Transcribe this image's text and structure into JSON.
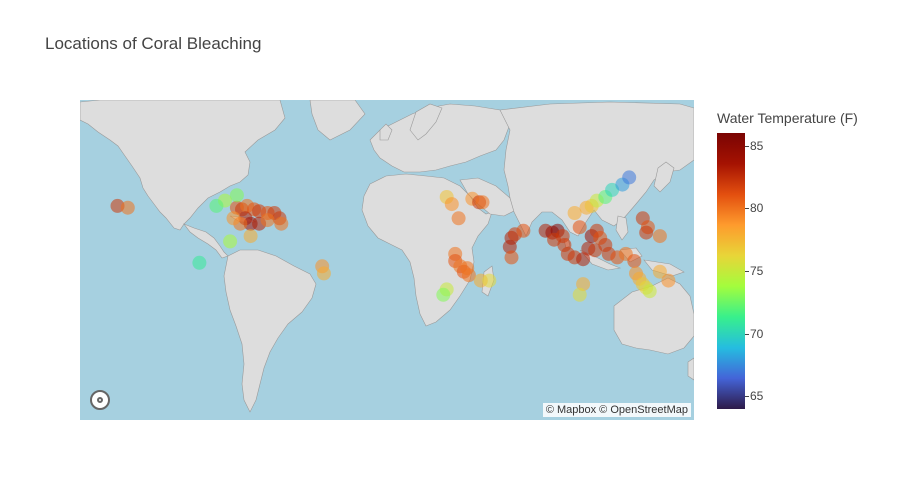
{
  "title": "Locations of Coral Bleaching",
  "attribution": "© Mapbox © OpenStreetMap",
  "colorbar": {
    "title": "Water Temperature (F)",
    "min": 64,
    "max": 86,
    "ticks": [
      "85",
      "80",
      "75",
      "70",
      "65"
    ],
    "colors": [
      "#2e1a49",
      "#4464d8",
      "#25bde0",
      "#38f08c",
      "#a3fd3d",
      "#e8d538",
      "#fe9b2d",
      "#e34f0f",
      "#a51202",
      "#7a0403"
    ]
  },
  "map": {
    "type": "scattermapbox",
    "center": {
      "lon": 20,
      "lat": 10
    },
    "ocean_color": "#a6d0e0",
    "land_color": "#dddddd"
  },
  "chart_data": {
    "type": "scatter",
    "title": "Locations of Coral Bleaching",
    "color_variable": "Water Temperature (F)",
    "points": [
      {
        "lon": -95,
        "lat": 25,
        "t": 74
      },
      {
        "lon": -100,
        "lat": 22,
        "t": 72
      },
      {
        "lon": -88,
        "lat": 21,
        "t": 81
      },
      {
        "lon": -85,
        "lat": 20,
        "t": 82
      },
      {
        "lon": -82,
        "lat": 22,
        "t": 80
      },
      {
        "lon": -78,
        "lat": 20,
        "t": 81
      },
      {
        "lon": -75,
        "lat": 19,
        "t": 82
      },
      {
        "lon": -70,
        "lat": 18,
        "t": 81
      },
      {
        "lon": -66,
        "lat": 18,
        "t": 82
      },
      {
        "lon": -63,
        "lat": 15,
        "t": 82
      },
      {
        "lon": -83,
        "lat": 15,
        "t": 83
      },
      {
        "lon": -80,
        "lat": 12,
        "t": 84
      },
      {
        "lon": -75,
        "lat": 12,
        "t": 83
      },
      {
        "lon": -86,
        "lat": 12,
        "t": 80
      },
      {
        "lon": -62,
        "lat": 12,
        "t": 80
      },
      {
        "lon": -70,
        "lat": 14,
        "t": 80
      },
      {
        "lon": -90,
        "lat": 15,
        "t": 79
      },
      {
        "lon": -88,
        "lat": 28,
        "t": 73
      },
      {
        "lon": -92,
        "lat": 2,
        "t": 74
      },
      {
        "lon": -80,
        "lat": 5,
        "t": 78
      },
      {
        "lon": -158,
        "lat": 22,
        "t": 82
      },
      {
        "lon": -152,
        "lat": 21,
        "t": 80
      },
      {
        "lon": -110,
        "lat": -10,
        "t": 71
      },
      {
        "lon": -38,
        "lat": -12,
        "t": 79
      },
      {
        "lon": -37,
        "lat": -16,
        "t": 78
      },
      {
        "lon": 35,
        "lat": 27,
        "t": 77
      },
      {
        "lon": 38,
        "lat": 23,
        "t": 79
      },
      {
        "lon": 50,
        "lat": 26,
        "t": 79
      },
      {
        "lon": 54,
        "lat": 24,
        "t": 82
      },
      {
        "lon": 56,
        "lat": 24,
        "t": 80
      },
      {
        "lon": 42,
        "lat": 15,
        "t": 80
      },
      {
        "lon": 40,
        "lat": -5,
        "t": 80
      },
      {
        "lon": 40,
        "lat": -9,
        "t": 81
      },
      {
        "lon": 43,
        "lat": -12,
        "t": 80
      },
      {
        "lon": 45,
        "lat": -15,
        "t": 81
      },
      {
        "lon": 48,
        "lat": -17,
        "t": 80
      },
      {
        "lon": 55,
        "lat": -20,
        "t": 78
      },
      {
        "lon": 60,
        "lat": -20,
        "t": 76
      },
      {
        "lon": 35,
        "lat": -25,
        "t": 75
      },
      {
        "lon": 33,
        "lat": -28,
        "t": 73
      },
      {
        "lon": 47,
        "lat": -13,
        "t": 80
      },
      {
        "lon": 73,
        "lat": 4,
        "t": 83
      },
      {
        "lon": 75,
        "lat": 6,
        "t": 82
      },
      {
        "lon": 72,
        "lat": -1,
        "t": 83
      },
      {
        "lon": 80,
        "lat": 8,
        "t": 81
      },
      {
        "lon": 73,
        "lat": -7,
        "t": 81
      },
      {
        "lon": 93,
        "lat": 8,
        "t": 83
      },
      {
        "lon": 97,
        "lat": 7,
        "t": 84
      },
      {
        "lon": 100,
        "lat": 8,
        "t": 85
      },
      {
        "lon": 98,
        "lat": 3,
        "t": 82
      },
      {
        "lon": 103,
        "lat": 5,
        "t": 82
      },
      {
        "lon": 104,
        "lat": 0,
        "t": 82
      },
      {
        "lon": 106,
        "lat": -5,
        "t": 82
      },
      {
        "lon": 110,
        "lat": -7,
        "t": 82
      },
      {
        "lon": 115,
        "lat": -8,
        "t": 83
      },
      {
        "lon": 118,
        "lat": -2,
        "t": 83
      },
      {
        "lon": 120,
        "lat": 5,
        "t": 84
      },
      {
        "lon": 123,
        "lat": 8,
        "t": 82
      },
      {
        "lon": 125,
        "lat": 4,
        "t": 81
      },
      {
        "lon": 128,
        "lat": 0,
        "t": 82
      },
      {
        "lon": 122,
        "lat": -3,
        "t": 82
      },
      {
        "lon": 130,
        "lat": -5,
        "t": 82
      },
      {
        "lon": 135,
        "lat": -7,
        "t": 81
      },
      {
        "lon": 140,
        "lat": -5,
        "t": 80
      },
      {
        "lon": 145,
        "lat": -9,
        "t": 81
      },
      {
        "lon": 113,
        "lat": 10,
        "t": 81
      },
      {
        "lon": 110,
        "lat": 18,
        "t": 78
      },
      {
        "lon": 117,
        "lat": 21,
        "t": 78
      },
      {
        "lon": 120,
        "lat": 22,
        "t": 77
      },
      {
        "lon": 123,
        "lat": 25,
        "t": 75
      },
      {
        "lon": 128,
        "lat": 27,
        "t": 72
      },
      {
        "lon": 132,
        "lat": 31,
        "t": 70
      },
      {
        "lon": 138,
        "lat": 34,
        "t": 68
      },
      {
        "lon": 142,
        "lat": 38,
        "t": 67
      },
      {
        "lon": 150,
        "lat": 15,
        "t": 82
      },
      {
        "lon": 153,
        "lat": 10,
        "t": 81
      },
      {
        "lon": 152,
        "lat": 7,
        "t": 82
      },
      {
        "lon": 160,
        "lat": 5,
        "t": 80
      },
      {
        "lon": 146,
        "lat": -16,
        "t": 79
      },
      {
        "lon": 148,
        "lat": -19,
        "t": 78
      },
      {
        "lon": 150,
        "lat": -22,
        "t": 77
      },
      {
        "lon": 152,
        "lat": -24,
        "t": 76
      },
      {
        "lon": 154,
        "lat": -26,
        "t": 75
      },
      {
        "lon": 160,
        "lat": -15,
        "t": 78
      },
      {
        "lon": 165,
        "lat": -20,
        "t": 79
      },
      {
        "lon": 115,
        "lat": -22,
        "t": 78
      },
      {
        "lon": 113,
        "lat": -28,
        "t": 76
      }
    ]
  }
}
